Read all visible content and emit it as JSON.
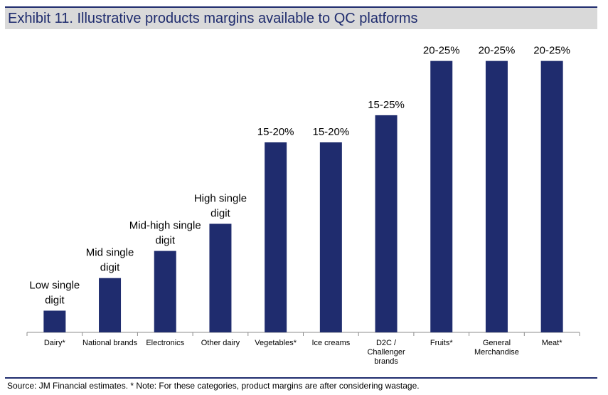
{
  "header": {
    "title": "Exhibit 11. Illustrative products margins available to QC platforms"
  },
  "footer": {
    "source": "Source: JM Financial estimates. * Note: For these categories, product margins are after considering wastage."
  },
  "colors": {
    "bar": "#1f2c6e",
    "header_band": "#d9d9d9",
    "rule": "#1f2c6e"
  },
  "chart_data": {
    "type": "bar",
    "title": "",
    "xlabel": "",
    "ylabel": "",
    "grid": false,
    "ylim": [
      0,
      25.5
    ],
    "categories": [
      [
        "Dairy*"
      ],
      [
        "National brands"
      ],
      [
        "Electronics"
      ],
      [
        "Other dairy"
      ],
      [
        "Vegetables*"
      ],
      [
        "Ice creams"
      ],
      [
        "D2C /",
        "Challenger",
        "brands"
      ],
      [
        "Fruits*"
      ],
      [
        "General",
        "Merchandise"
      ],
      [
        "Meat*"
      ]
    ],
    "values": [
      2,
      5,
      7.5,
      10,
      17.5,
      17.5,
      20,
      25,
      25,
      25
    ],
    "data_labels": [
      [
        "Low single",
        "digit"
      ],
      [
        "Mid single",
        "digit"
      ],
      [
        "Mid-high single",
        "digit"
      ],
      [
        "High single",
        "digit"
      ],
      [
        "15-20%"
      ],
      [
        "15-20%"
      ],
      [
        "15-25%"
      ],
      [
        "20-25%"
      ],
      [
        "20-25%"
      ],
      [
        "20-25%"
      ]
    ]
  }
}
